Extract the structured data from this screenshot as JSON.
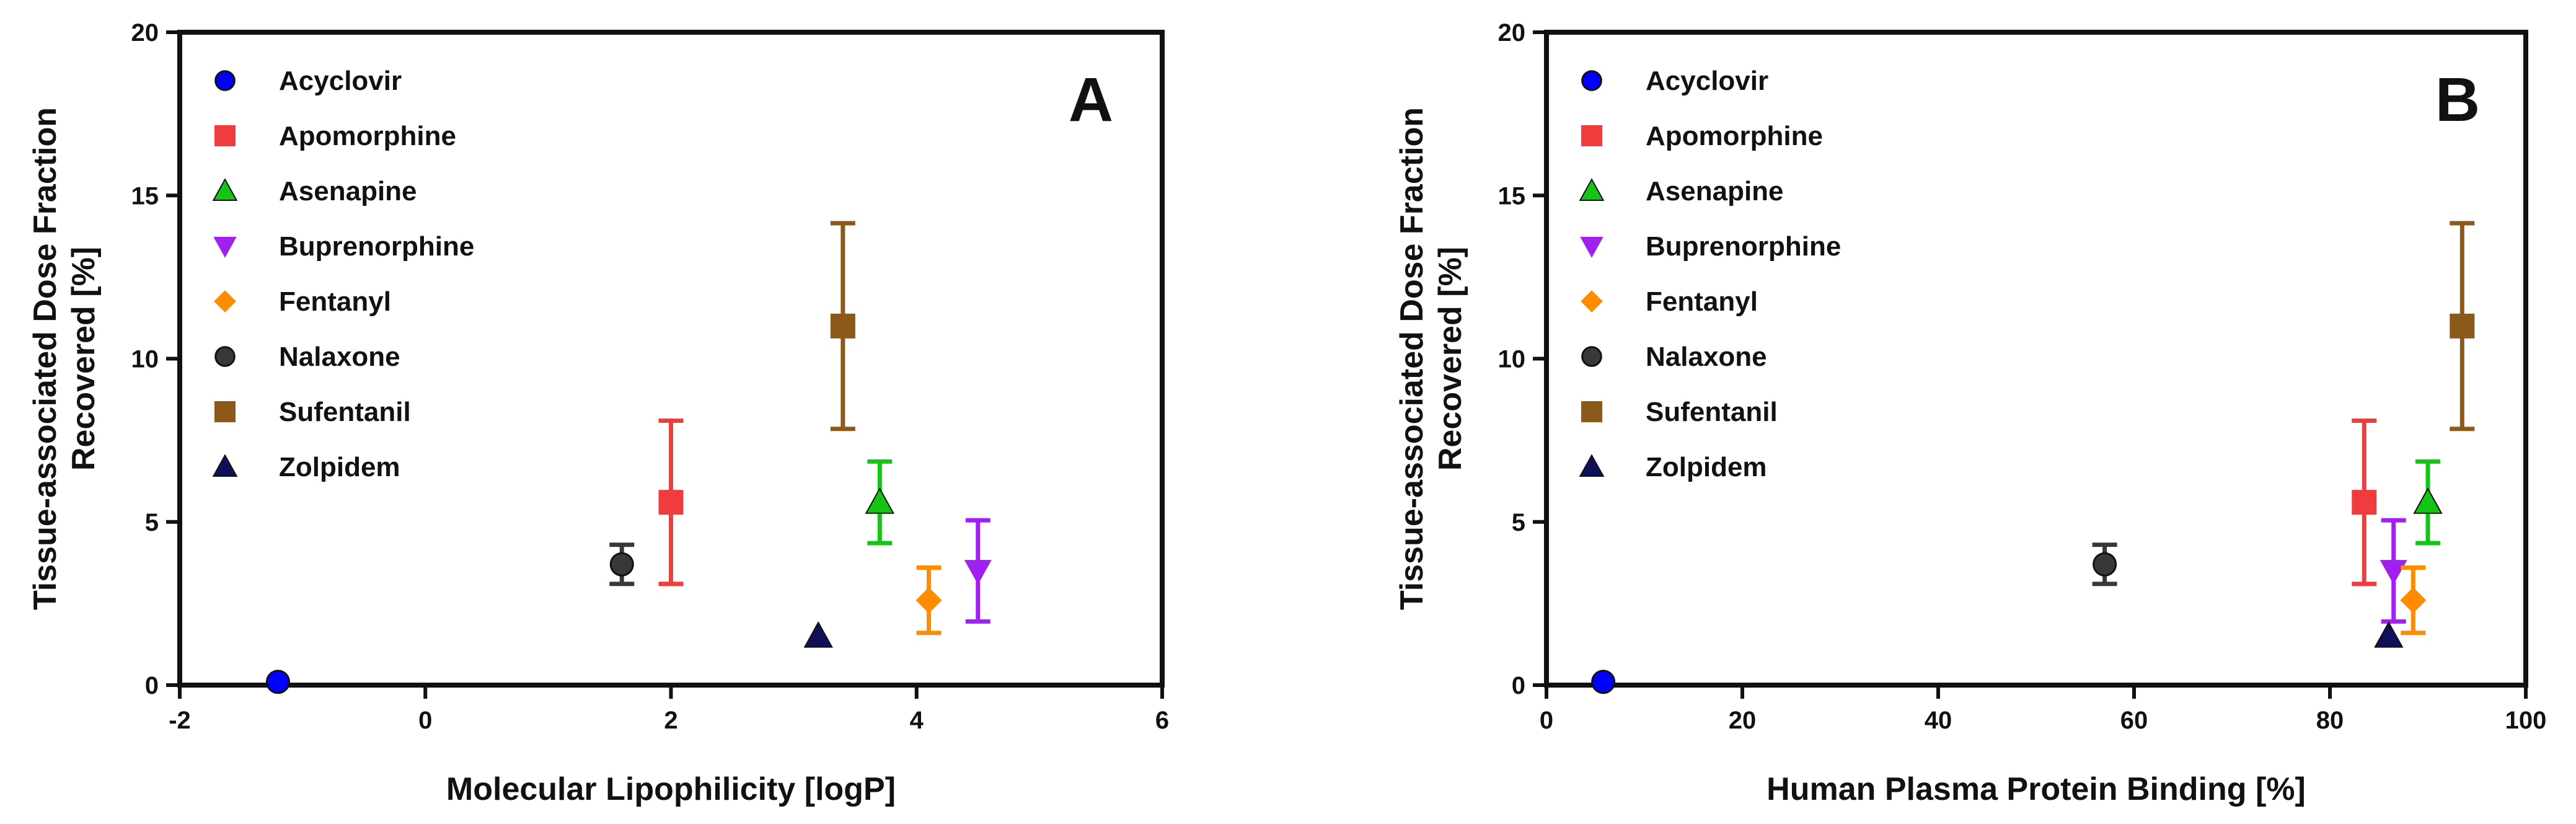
{
  "chart_data": [
    {
      "type": "scatter",
      "panel_letter": "A",
      "xlabel": "Molecular Lipophilicity [logP]",
      "ylabel_lines": [
        "Tissue-associated Dose Fraction",
        "Recovered [%]"
      ],
      "xlim": [
        -2,
        6
      ],
      "ylim": [
        0,
        20
      ],
      "xticks": [
        "-2",
        "0",
        "2",
        "4",
        "6"
      ],
      "yticks": [
        "0",
        "5",
        "10",
        "15",
        "20"
      ],
      "legend_position": "top-left",
      "series": [
        {
          "name": "Acyclovir",
          "marker": "circle",
          "color": "#0000ff",
          "x": -1.2,
          "y": 0.1,
          "err": 0
        },
        {
          "name": "Apomorphine",
          "marker": "square",
          "color": "#f03c3c",
          "x": 2.0,
          "y": 5.6,
          "err": 2.5
        },
        {
          "name": "Asenapine",
          "marker": "triangle-up",
          "color": "#16c416",
          "x": 3.7,
          "y": 5.6,
          "err": 1.25
        },
        {
          "name": "Buprenorphine",
          "marker": "triangle-down",
          "color": "#a020f0",
          "x": 4.5,
          "y": 3.5,
          "err": 1.55
        },
        {
          "name": "Fentanyl",
          "marker": "diamond",
          "color": "#ff8c00",
          "x": 4.1,
          "y": 2.6,
          "err": 1.0
        },
        {
          "name": "Nalaxone",
          "marker": "circle",
          "color": "#383838",
          "x": 1.6,
          "y": 3.7,
          "err": 0.6
        },
        {
          "name": "Sufentanil",
          "marker": "square",
          "color": "#8b5a1a",
          "x": 3.4,
          "y": 11.0,
          "err": 3.15
        },
        {
          "name": "Zolpidem",
          "marker": "triangle-up",
          "color": "#10105a",
          "x": 3.2,
          "y": 1.5,
          "err": 0
        }
      ]
    },
    {
      "type": "scatter",
      "panel_letter": "B",
      "xlabel": "Human Plasma Protein Binding [%]",
      "ylabel_lines": [
        "Tissue-associated Dose Fraction",
        "Recovered [%]"
      ],
      "xlim": [
        0,
        100
      ],
      "ylim": [
        0,
        20
      ],
      "xticks": [
        "0",
        "20",
        "40",
        "60",
        "80",
        "100"
      ],
      "yticks": [
        "0",
        "5",
        "10",
        "15",
        "20"
      ],
      "legend_position": "top-left",
      "series": [
        {
          "name": "Acyclovir",
          "marker": "circle",
          "color": "#0000ff",
          "x": 5.8,
          "y": 0.1,
          "err": 0
        },
        {
          "name": "Apomorphine",
          "marker": "square",
          "color": "#f03c3c",
          "x": 83.5,
          "y": 5.6,
          "err": 2.5
        },
        {
          "name": "Asenapine",
          "marker": "triangle-up",
          "color": "#16c416",
          "x": 90.0,
          "y": 5.6,
          "err": 1.25
        },
        {
          "name": "Buprenorphine",
          "marker": "triangle-down",
          "color": "#a020f0",
          "x": 86.5,
          "y": 3.5,
          "err": 1.55
        },
        {
          "name": "Fentanyl",
          "marker": "diamond",
          "color": "#ff8c00",
          "x": 88.5,
          "y": 2.6,
          "err": 1.0
        },
        {
          "name": "Nalaxone",
          "marker": "circle",
          "color": "#383838",
          "x": 57.0,
          "y": 3.7,
          "err": 0.6
        },
        {
          "name": "Sufentanil",
          "marker": "square",
          "color": "#8b5a1a",
          "x": 93.5,
          "y": 11.0,
          "err": 3.15
        },
        {
          "name": "Zolpidem",
          "marker": "triangle-up",
          "color": "#10105a",
          "x": 86.0,
          "y": 1.5,
          "err": 0
        }
      ]
    }
  ]
}
